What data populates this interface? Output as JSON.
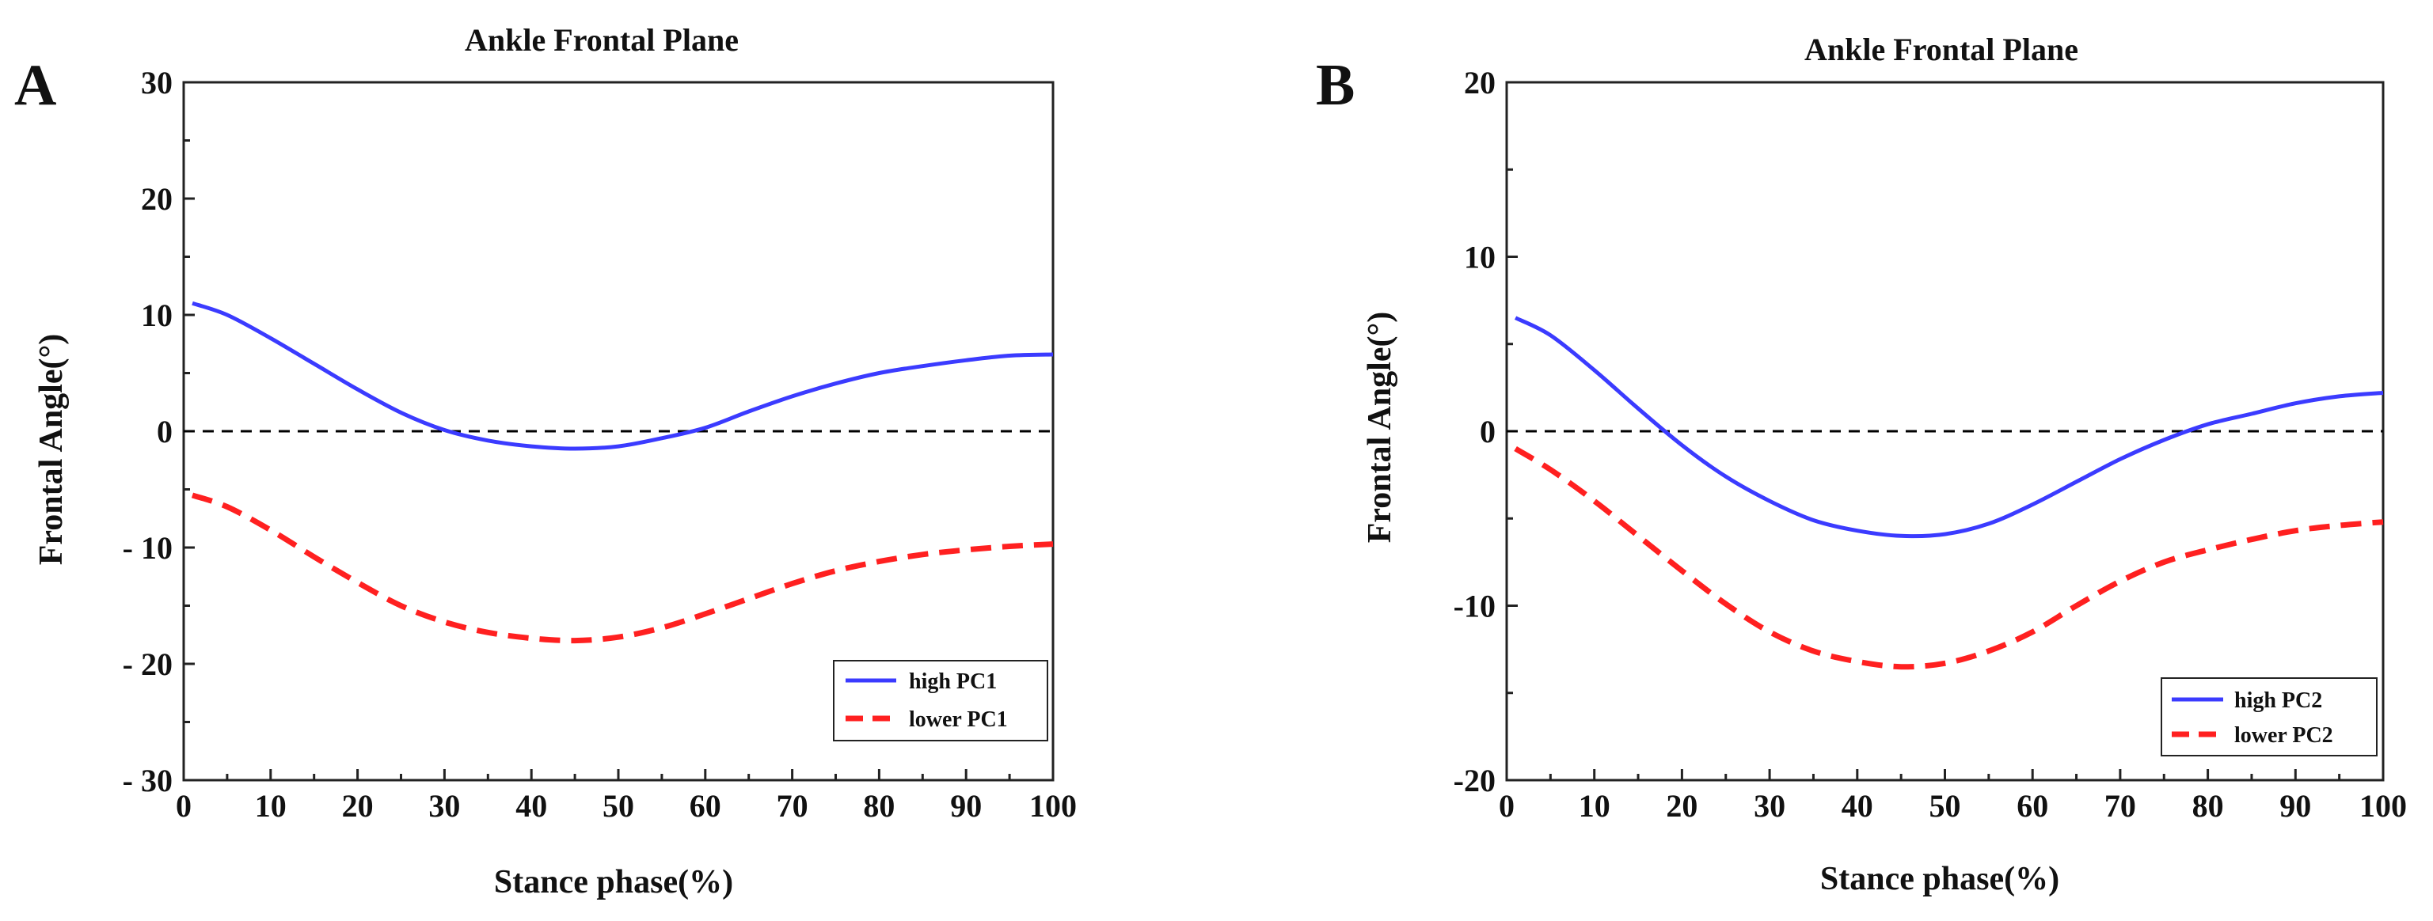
{
  "chart_data": [
    {
      "panel": "A",
      "type": "line",
      "title": "Ankle Frontal Plane",
      "xlabel": "Stance phase(%)",
      "ylabel": "Frontal Angle(°)",
      "xlim": [
        0,
        100
      ],
      "ylim": [
        -30,
        30
      ],
      "xticks": [
        0,
        10,
        20,
        30,
        40,
        50,
        60,
        70,
        80,
        90,
        100
      ],
      "yticks": [
        30,
        20,
        10,
        0,
        -10,
        -20,
        -30
      ],
      "ytick_labels": [
        "30",
        "20",
        "10",
        "0",
        "- 10",
        "- 20",
        "- 30"
      ],
      "legend_position": "bottom-right",
      "reference_line": {
        "y": 0,
        "style": "dashed",
        "color": "#000000"
      },
      "series": [
        {
          "name": "high PC1",
          "color": "#3b3bff",
          "style": "solid",
          "x": [
            1,
            5,
            10,
            15,
            20,
            25,
            30,
            35,
            40,
            45,
            50,
            55,
            60,
            65,
            70,
            75,
            80,
            85,
            90,
            95,
            100
          ],
          "y": [
            11,
            10,
            8,
            5.8,
            3.6,
            1.6,
            0.1,
            -0.8,
            -1.3,
            -1.5,
            -1.3,
            -0.6,
            0.3,
            1.7,
            3,
            4.1,
            5,
            5.6,
            6.1,
            6.5,
            6.6
          ]
        },
        {
          "name": "lower PC1",
          "color": "#ff2020",
          "style": "dashed",
          "x": [
            1,
            5,
            10,
            15,
            20,
            25,
            30,
            35,
            40,
            45,
            50,
            55,
            60,
            65,
            70,
            75,
            80,
            85,
            90,
            95,
            100
          ],
          "y": [
            -5.5,
            -6.5,
            -8.5,
            -10.8,
            -13,
            -15,
            -16.4,
            -17.3,
            -17.8,
            -18,
            -17.7,
            -16.9,
            -15.7,
            -14.4,
            -13.1,
            -12,
            -11.2,
            -10.6,
            -10.2,
            -9.9,
            -9.7
          ]
        }
      ]
    },
    {
      "panel": "B",
      "type": "line",
      "title": "Ankle Frontal Plane",
      "xlabel": "Stance phase(%)",
      "ylabel": "Frontal Angle(°)",
      "xlim": [
        0,
        100
      ],
      "ylim": [
        -20,
        20
      ],
      "xticks": [
        0,
        10,
        20,
        30,
        40,
        50,
        60,
        70,
        80,
        90,
        100
      ],
      "yticks": [
        20,
        10,
        0,
        -10,
        -20
      ],
      "ytick_labels": [
        "20",
        "10",
        "0",
        "-10",
        "-20"
      ],
      "legend_position": "bottom-right",
      "reference_line": {
        "y": 0,
        "style": "dashed",
        "color": "#000000"
      },
      "series": [
        {
          "name": "high PC2",
          "color": "#3b3bff",
          "style": "solid",
          "x": [
            1,
            5,
            10,
            15,
            20,
            25,
            30,
            35,
            40,
            45,
            50,
            55,
            60,
            65,
            70,
            75,
            80,
            85,
            90,
            95,
            100
          ],
          "y": [
            6.5,
            5.5,
            3.5,
            1.3,
            -0.8,
            -2.6,
            -4,
            -5.1,
            -5.7,
            -6,
            -5.9,
            -5.3,
            -4.2,
            -2.9,
            -1.6,
            -0.5,
            0.4,
            1,
            1.6,
            2,
            2.2
          ]
        },
        {
          "name": "lower PC2",
          "color": "#ff2020",
          "style": "dashed",
          "x": [
            1,
            5,
            10,
            15,
            20,
            25,
            30,
            35,
            40,
            45,
            50,
            55,
            60,
            65,
            70,
            75,
            80,
            85,
            90,
            95,
            100
          ],
          "y": [
            -1,
            -2.2,
            -4,
            -6,
            -8,
            -9.9,
            -11.5,
            -12.6,
            -13.2,
            -13.5,
            -13.3,
            -12.6,
            -11.5,
            -10,
            -8.6,
            -7.5,
            -6.8,
            -6.2,
            -5.7,
            -5.4,
            -5.2
          ]
        }
      ]
    }
  ]
}
